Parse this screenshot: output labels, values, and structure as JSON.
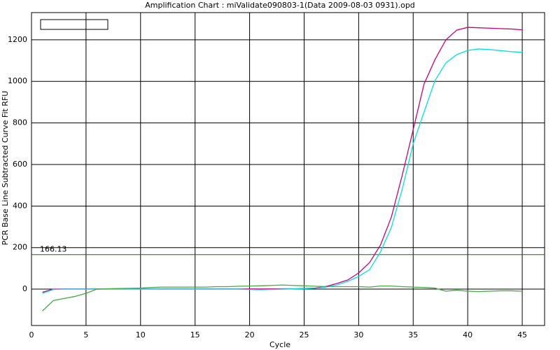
{
  "chart_data": {
    "type": "line",
    "title": "Amplification Chart : miValidate090803-1(Data 2009-08-03 0931).opd",
    "x_label": "Cycle",
    "y_label": "PCR Base Line Subtracted Curve Fit RFU",
    "x": [
      1,
      2,
      3,
      4,
      5,
      6,
      7,
      8,
      9,
      10,
      11,
      12,
      13,
      14,
      15,
      16,
      17,
      18,
      19,
      20,
      21,
      22,
      23,
      24,
      25,
      26,
      27,
      28,
      29,
      30,
      31,
      32,
      33,
      34,
      35,
      36,
      37,
      38,
      39,
      40,
      41,
      42,
      43,
      44,
      45
    ],
    "series": [
      {
        "color": "#cc0077",
        "values": [
          -15,
          0,
          1,
          1,
          1,
          1,
          1,
          1,
          1,
          1,
          1,
          1,
          1,
          1,
          1,
          1,
          1,
          1,
          1,
          1,
          1,
          1,
          2,
          2,
          3,
          5,
          13,
          27,
          44,
          78,
          128,
          212,
          347,
          549,
          768,
          988,
          1105,
          1200,
          1247,
          1260,
          1258,
          1256,
          1254,
          1252,
          1248
        ]
      },
      {
        "color": "#00e0e8",
        "values": [
          -20,
          -2,
          0,
          0,
          0,
          0,
          0,
          0,
          0,
          0,
          0,
          0,
          0,
          0,
          0,
          0,
          0,
          0,
          0,
          -2,
          -3,
          -2,
          0,
          1,
          2,
          4,
          10,
          20,
          37,
          61,
          94,
          179,
          297,
          482,
          700,
          853,
          1004,
          1089,
          1129,
          1149,
          1156,
          1153,
          1148,
          1143,
          1140
        ]
      },
      {
        "color": "#44aa44",
        "values": [
          -105,
          -55,
          -45,
          -35,
          -20,
          0,
          2,
          3,
          4,
          5,
          8,
          10,
          10,
          10,
          10,
          10,
          12,
          12,
          14,
          15,
          16,
          18,
          20,
          18,
          16,
          14,
          12,
          12,
          12,
          12,
          10,
          15,
          15,
          12,
          10,
          8,
          5,
          -10,
          -5,
          -10,
          -12,
          -10,
          -8,
          -8,
          -10
        ]
      }
    ],
    "threshold": 166.13,
    "threshold_color": "#007700",
    "xlim": [
      0,
      47.05
    ],
    "xticks": [
      0,
      5,
      10,
      15,
      20,
      25,
      30,
      35,
      40,
      45
    ],
    "ylim": [
      -175,
      1331
    ],
    "yticks": [
      0,
      200,
      400,
      600,
      800,
      1000,
      1200
    ],
    "grid": true
  }
}
